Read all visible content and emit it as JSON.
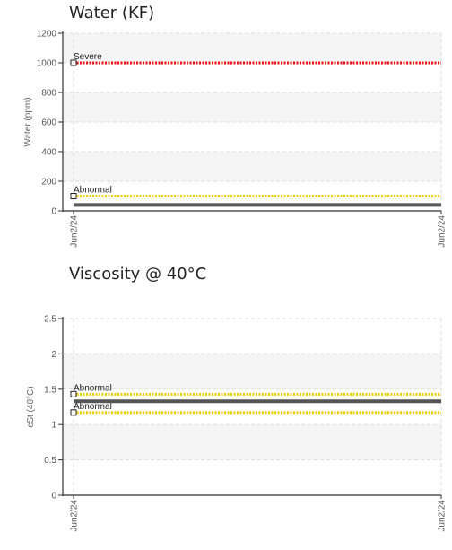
{
  "chart_data": [
    {
      "type": "line",
      "title": "Water (KF)",
      "xlabel": "",
      "ylabel": "Water (ppm)",
      "ylim": [
        0,
        1200
      ],
      "yticks": [
        0,
        200,
        400,
        600,
        800,
        1000,
        1200
      ],
      "x": [
        "Jun2/24",
        "Jun2/24"
      ],
      "grid": true,
      "series": [
        {
          "values": [
            40,
            40
          ],
          "color": "#555555"
        }
      ],
      "thresholds": [
        {
          "label": "Severe",
          "value": 1000,
          "color": "#ee1111"
        },
        {
          "label": "Abnormal",
          "value": 100,
          "color": "#eecc00"
        }
      ]
    },
    {
      "type": "line",
      "title": "Viscosity @ 40°C",
      "xlabel": "",
      "ylabel": "cSt (40°C)",
      "ylim": [
        0,
        2.5
      ],
      "yticks": [
        0,
        0.5,
        1,
        1.5,
        2,
        2.5
      ],
      "x": [
        "Jun2/24",
        "Jun2/24"
      ],
      "grid": true,
      "series": [
        {
          "values": [
            1.33,
            1.33
          ],
          "color": "#555555"
        }
      ],
      "thresholds": [
        {
          "label": "Abnormal",
          "value": 1.43,
          "color": "#eecc00"
        },
        {
          "label": "Abnormal",
          "value": 1.17,
          "color": "#eecc00"
        }
      ]
    }
  ]
}
